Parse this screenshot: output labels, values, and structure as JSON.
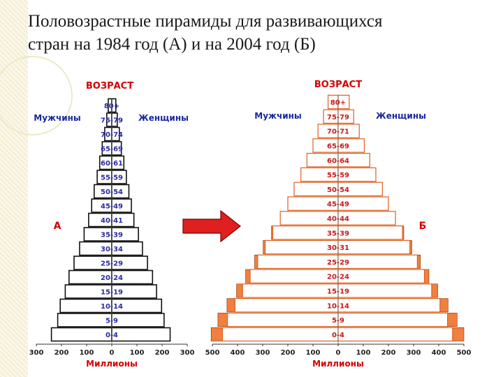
{
  "slide": {
    "title_line1": "Половозрастные пирамиды для развивающихся",
    "title_line2": "стран на 1984 год (А) и на 2004 год (Б)"
  },
  "colors": {
    "frame": "#111111",
    "bar_fill_a": "#ffffff",
    "bar_fill_b": "#ffffff",
    "bar_border_b": "#e06020",
    "growth_fill": "#f08040",
    "arrow": "#e02020",
    "label_red": "#d40000",
    "label_blue": "#1a2a9c"
  },
  "chart_data": [
    {
      "type": "bar",
      "orientation": "population-pyramid",
      "panel_label": "А",
      "header": "ВОЗРАСТ",
      "left_label": "Мужчины",
      "right_label": "Женщины",
      "xlabel": "Миллионы",
      "x_ticks": [
        "300",
        "200",
        "100",
        "0",
        "100",
        "200",
        "300"
      ],
      "xlim": [
        -300,
        300
      ],
      "categories": [
        "0-4",
        "5-9",
        "10-14",
        "15-19",
        "20-24",
        "25-29",
        "30-34",
        "35-39",
        "40-41",
        "45-49",
        "50-54",
        "55-59",
        "60-61",
        "65-69",
        "70-74",
        "75-79",
        "80+"
      ],
      "series": [
        {
          "name": "Мужчины",
          "values": [
            240,
            215,
            205,
            185,
            170,
            150,
            128,
            110,
            92,
            80,
            70,
            58,
            48,
            38,
            28,
            20,
            14
          ]
        },
        {
          "name": "Женщины",
          "values": [
            232,
            208,
            198,
            178,
            162,
            142,
            122,
            106,
            88,
            78,
            68,
            58,
            48,
            38,
            30,
            22,
            16
          ]
        }
      ]
    },
    {
      "type": "bar",
      "orientation": "population-pyramid",
      "panel_label": "Б",
      "header": "ВОЗРАСТ",
      "left_label": "Мужчины",
      "right_label": "Женщины",
      "xlabel": "Миллионы",
      "x_ticks": [
        "500",
        "400",
        "300",
        "200",
        "100",
        "0",
        "100",
        "200",
        "300",
        "400",
        "500"
      ],
      "xlim": [
        -500,
        500
      ],
      "categories": [
        "0-4",
        "5-9",
        "10-14",
        "15-19",
        "20-24",
        "25-29",
        "30-31",
        "35-39",
        "40-44",
        "45-49",
        "50-54",
        "55-59",
        "60-64",
        "65-69",
        "70-71",
        "75-79",
        "80+"
      ],
      "series": [
        {
          "name": "Мужчины",
          "values": [
            460,
            440,
            410,
            380,
            350,
            320,
            290,
            260,
            230,
            200,
            175,
            148,
            124,
            100,
            80,
            58,
            40
          ]
        },
        {
          "name": "Женщины",
          "values": [
            455,
            435,
            405,
            372,
            343,
            315,
            285,
            256,
            228,
            200,
            176,
            150,
            126,
            104,
            84,
            62,
            44
          ]
        }
      ],
      "growth_vs_1984": {
        "categories": [
          "0-4",
          "5-9",
          "10-14",
          "15-19",
          "20-24",
          "25-29",
          "30-31",
          "35-39"
        ],
        "Мужчины": [
          45,
          38,
          32,
          24,
          18,
          12,
          8,
          5
        ],
        "Женщины": [
          45,
          38,
          32,
          24,
          18,
          12,
          8,
          5
        ]
      }
    }
  ]
}
